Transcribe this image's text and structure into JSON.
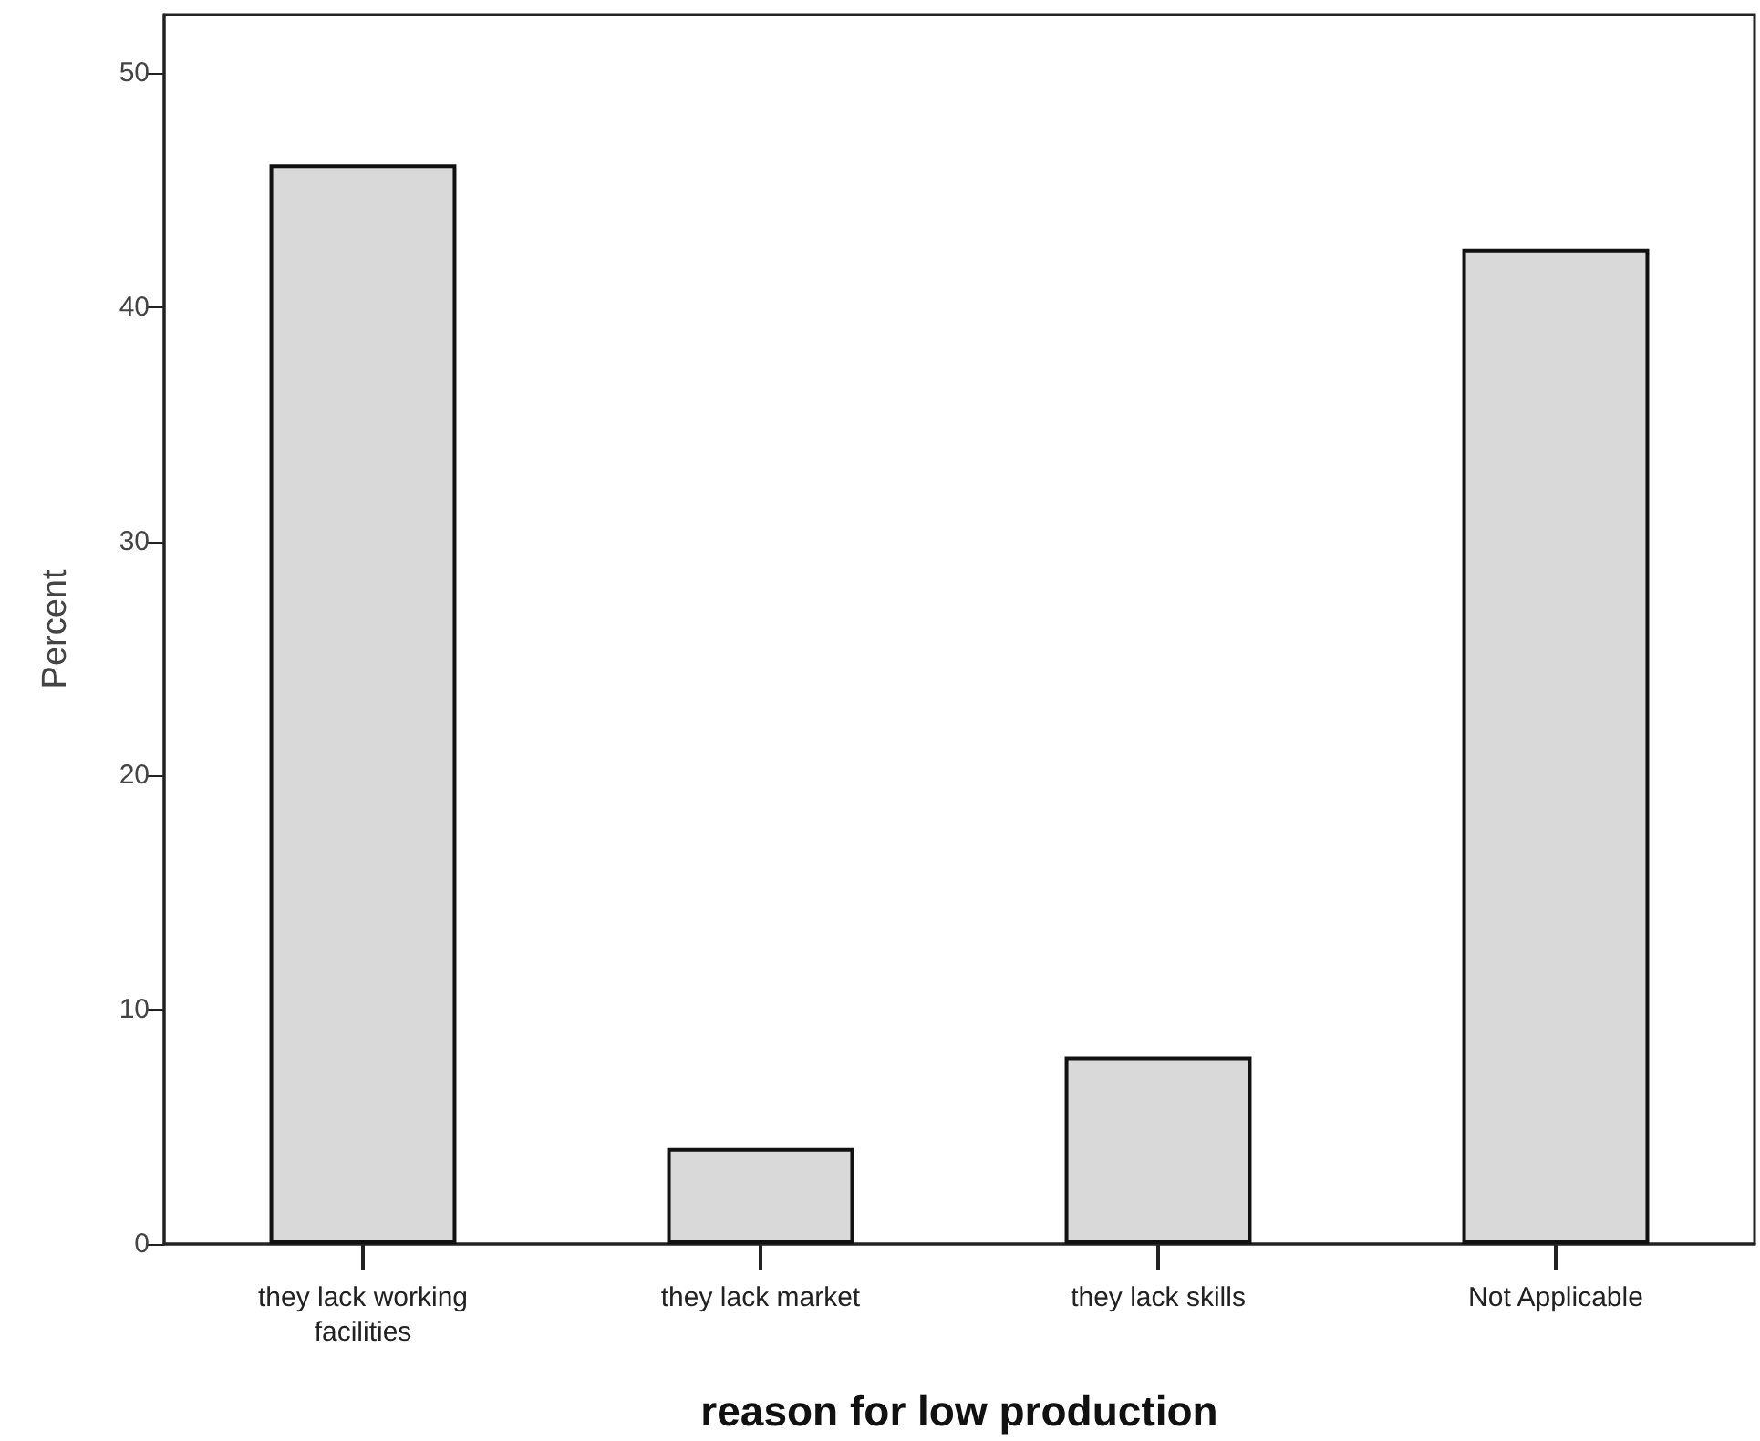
{
  "chart_data": {
    "type": "bar",
    "xlabel": "reason for low production",
    "ylabel": "Percent",
    "categories": [
      "they lack working\nfacilities",
      "they lack market",
      "they lack skills",
      "Not Applicable"
    ],
    "values": [
      46.1,
      4.1,
      8.0,
      42.5
    ],
    "color": "#d9d9d9",
    "ylim": [
      0,
      52.5
    ],
    "yticks": [
      0,
      10,
      20,
      30,
      40,
      50
    ],
    "grid": false
  }
}
